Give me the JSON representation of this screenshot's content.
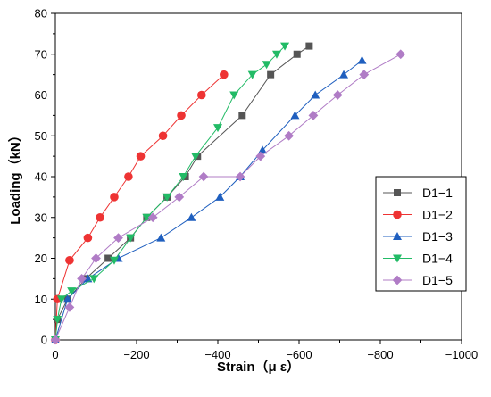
{
  "chart_data": {
    "type": "line",
    "title": "",
    "xlabel": "Strain（μ ε）",
    "ylabel": "Loading（kN）",
    "xlim": [
      0,
      1000
    ],
    "ylim": [
      0,
      80
    ],
    "x_ticks": [
      0,
      200,
      400,
      600,
      800,
      1000
    ],
    "x_tick_labels": [
      "0",
      "−200",
      "−400",
      "−600",
      "−800",
      "−1000"
    ],
    "y_ticks": [
      0,
      10,
      20,
      30,
      40,
      50,
      60,
      70,
      80
    ],
    "y_tick_labels": [
      "0",
      "10",
      "20",
      "30",
      "40",
      "50",
      "60",
      "70",
      "80"
    ],
    "grid": false,
    "legend_position": "right",
    "series": [
      {
        "name": "D1−1",
        "color": "#555555",
        "marker": "square",
        "x": [
          0,
          5,
          30,
          75,
          130,
          185,
          225,
          275,
          320,
          350,
          460,
          530,
          595,
          625
        ],
        "y": [
          0,
          5,
          10,
          15,
          20,
          25,
          30,
          35,
          40,
          45,
          55,
          65,
          70,
          72
        ]
      },
      {
        "name": "D1−2",
        "color": "#ee3333",
        "marker": "circle",
        "x": [
          0,
          5,
          35,
          80,
          110,
          145,
          180,
          210,
          265,
          310,
          360,
          415
        ],
        "y": [
          0,
          10,
          19.5,
          25,
          30,
          35,
          40,
          45,
          50,
          55,
          60,
          65
        ]
      },
      {
        "name": "D1−3",
        "color": "#1f5fbf",
        "marker": "triangle-up",
        "x": [
          0,
          30,
          80,
          155,
          260,
          335,
          405,
          455,
          510,
          590,
          640,
          710,
          755
        ],
        "y": [
          0,
          10,
          15,
          20,
          25,
          30,
          35,
          40,
          46.5,
          55,
          60,
          65,
          68.5
        ]
      },
      {
        "name": "D1−4",
        "color": "#22bb66",
        "marker": "triangle-down",
        "x": [
          0,
          5,
          15,
          40,
          95,
          145,
          185,
          225,
          275,
          315,
          345,
          400,
          440,
          485,
          520,
          545,
          565
        ],
        "y": [
          0,
          5,
          10,
          12,
          15,
          19.5,
          25,
          30,
          35,
          40,
          45,
          52,
          60,
          65,
          67.5,
          70,
          72
        ]
      },
      {
        "name": "D1−5",
        "color": "#b07cc6",
        "marker": "diamond",
        "x": [
          0,
          35,
          65,
          100,
          155,
          240,
          305,
          365,
          455,
          505,
          575,
          635,
          695,
          760,
          850
        ],
        "y": [
          0,
          8,
          15,
          20,
          25,
          30,
          35,
          40,
          40,
          45,
          50,
          55,
          60,
          65,
          70
        ]
      }
    ]
  }
}
